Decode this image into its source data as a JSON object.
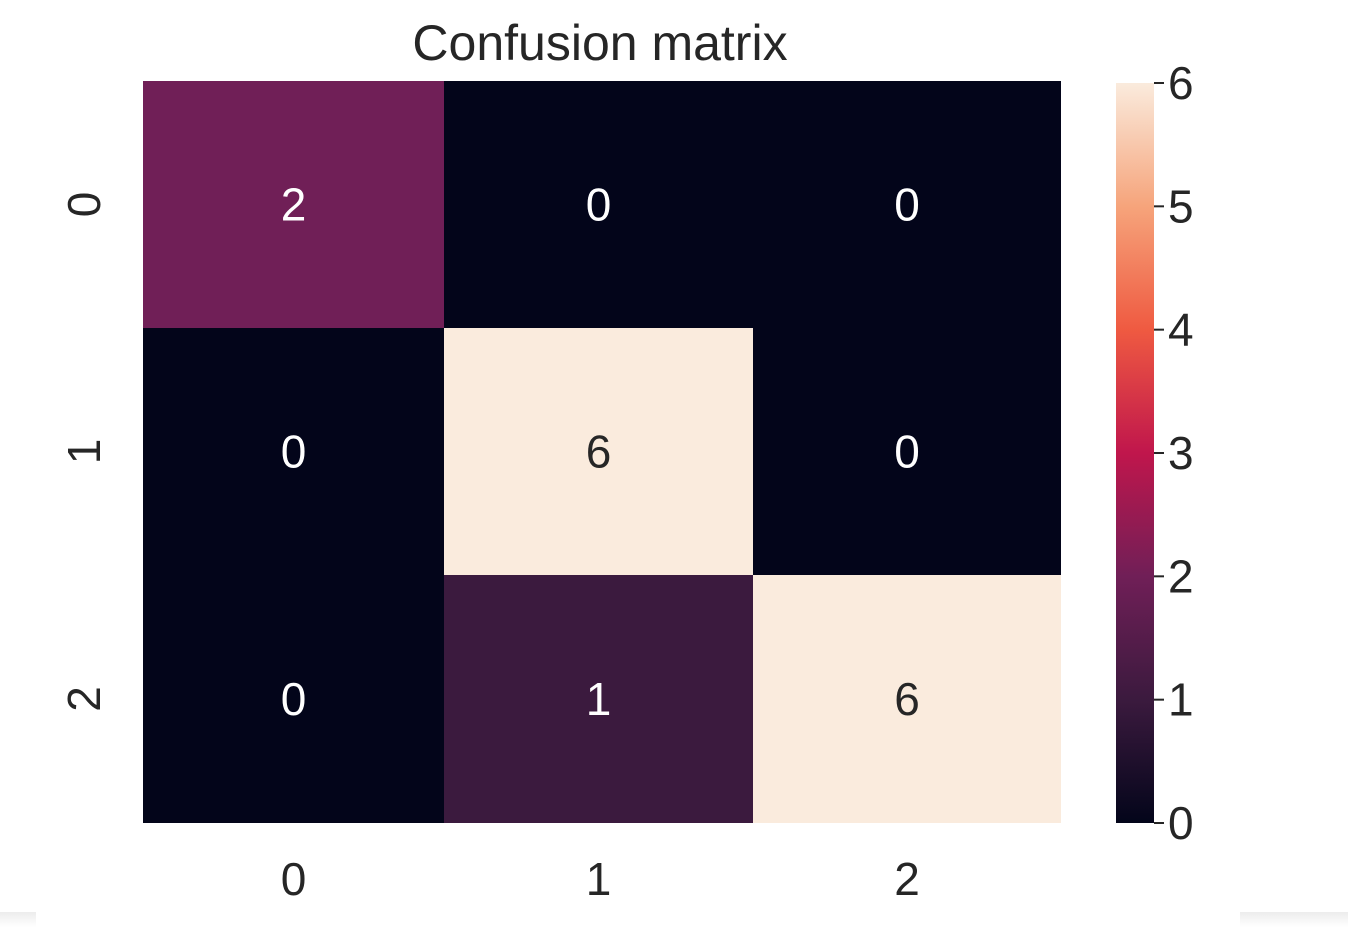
{
  "chart_data": {
    "type": "heatmap",
    "title": "Confusion matrix",
    "x_categories": [
      "0",
      "1",
      "2"
    ],
    "y_categories": [
      "0",
      "1",
      "2"
    ],
    "matrix": [
      [
        2,
        0,
        0
      ],
      [
        0,
        6,
        0
      ],
      [
        0,
        1,
        6
      ]
    ],
    "colorbar": {
      "min": 0,
      "max": 6,
      "ticks": [
        "0",
        "1",
        "2",
        "3",
        "4",
        "5",
        "6"
      ],
      "colormap": "rocket"
    },
    "cell_labels": true
  },
  "colors": {
    "text_dark": "#262626",
    "cell_text_light": "#ffffff"
  }
}
